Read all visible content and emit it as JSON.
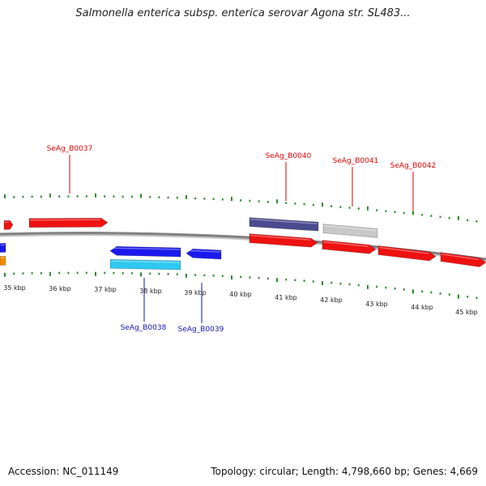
{
  "title": "Salmonella enterica subsp. enterica serovar Agona str. SL483...",
  "footer": {
    "accession_text": "Accession: NC_011149",
    "stats_text": "Topology: circular; Length: 4,798,660 bp; Genes: 4,669"
  },
  "colors": {
    "backbone": "#808080",
    "tick": "#2e8b2e",
    "red_gene": "#ee1111",
    "blue_gene": "#1a1aee",
    "cyan_gene": "#2ec8f0",
    "purple_gene": "#4a4a8e",
    "gray_gene": "#c8c8c8",
    "orange_gene": "#f08c00",
    "label_red": "#dd0000",
    "label_blue": "#1111bb"
  },
  "scale": {
    "unit": "kbp",
    "labels": [
      "35 kbp",
      "36 kbp",
      "37 kbp",
      "38 kbp",
      "39 kbp",
      "40 kbp",
      "41 kbp",
      "42 kbp",
      "43 kbp",
      "44 kbp",
      "45 kbp"
    ]
  },
  "gene_labels": [
    {
      "name": "SeAg_B0037",
      "color": "red"
    },
    {
      "name": "SeAg_B0038",
      "color": "blue"
    },
    {
      "name": "SeAg_B0039",
      "color": "blue"
    },
    {
      "name": "SeAg_B0040",
      "color": "red"
    },
    {
      "name": "SeAg_B0041",
      "color": "red"
    },
    {
      "name": "SeAg_B0042",
      "color": "red"
    }
  ]
}
